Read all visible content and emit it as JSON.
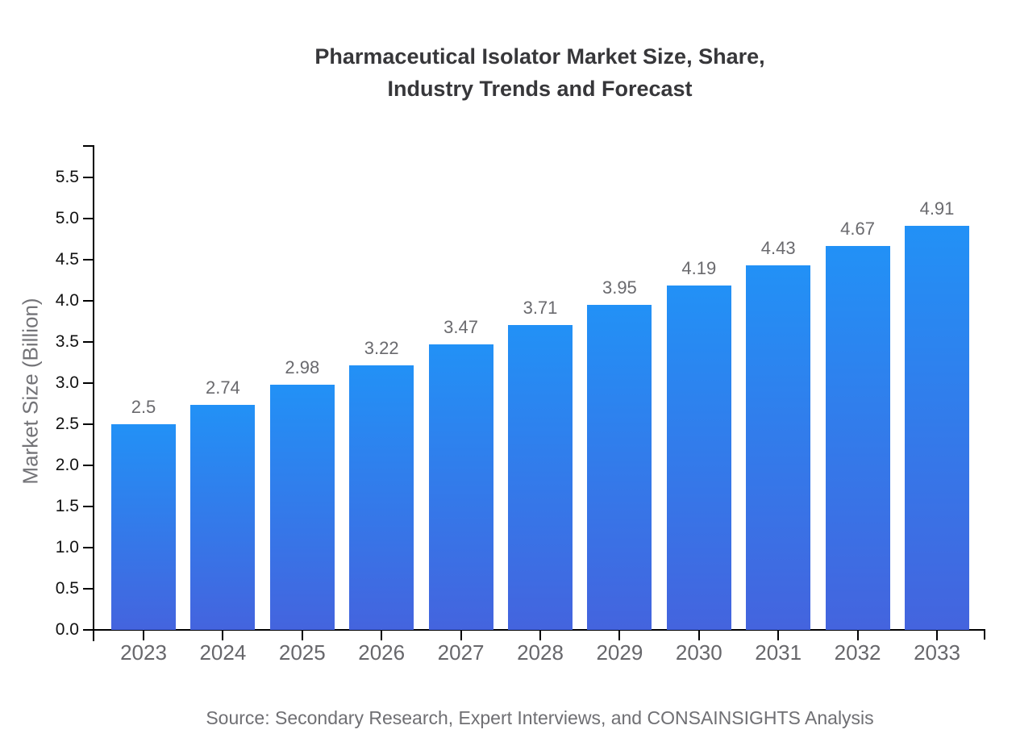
{
  "chart_data": {
    "type": "bar",
    "title_lines": [
      "Pharmaceutical Isolator Market Size, Share,",
      "Industry Trends and Forecast"
    ],
    "ylabel": "Market Size (Billion)",
    "xlabel": "",
    "categories": [
      "2023",
      "2024",
      "2025",
      "2026",
      "2027",
      "2028",
      "2029",
      "2030",
      "2031",
      "2032",
      "2033"
    ],
    "values": [
      2.5,
      2.74,
      2.98,
      3.22,
      3.47,
      3.71,
      3.95,
      4.19,
      4.43,
      4.67,
      4.91
    ],
    "value_labels": [
      "2.5",
      "2.74",
      "2.98",
      "3.22",
      "3.47",
      "3.71",
      "3.95",
      "4.19",
      "4.43",
      "4.67",
      "4.91"
    ],
    "yticks": [
      0.0,
      0.5,
      1.0,
      1.5,
      2.0,
      2.5,
      3.0,
      3.5,
      4.0,
      4.5,
      5.0,
      5.5
    ],
    "ytick_labels": [
      "0.0",
      "0.5",
      "1.0",
      "1.5",
      "2.0",
      "2.5",
      "3.0",
      "3.5",
      "4.0",
      "4.5",
      "5.0",
      "5.5"
    ],
    "ylim": [
      0,
      5.9
    ],
    "grid": false,
    "legend": null,
    "source": "Source: Secondary Research, Expert Interviews, and CONSAINSIGHTS Analysis",
    "colors": {
      "bar_gradient_top": "#2291F6",
      "bar_gradient_bottom": "#4464DE",
      "axis": "#000000",
      "title": "#37373a",
      "value_label": "#6a6a6e",
      "xtick_label": "#67676b",
      "ytick_label": "#111111",
      "ylabel": "#737377",
      "source": "#6f6f73",
      "background": "#ffffff"
    }
  }
}
